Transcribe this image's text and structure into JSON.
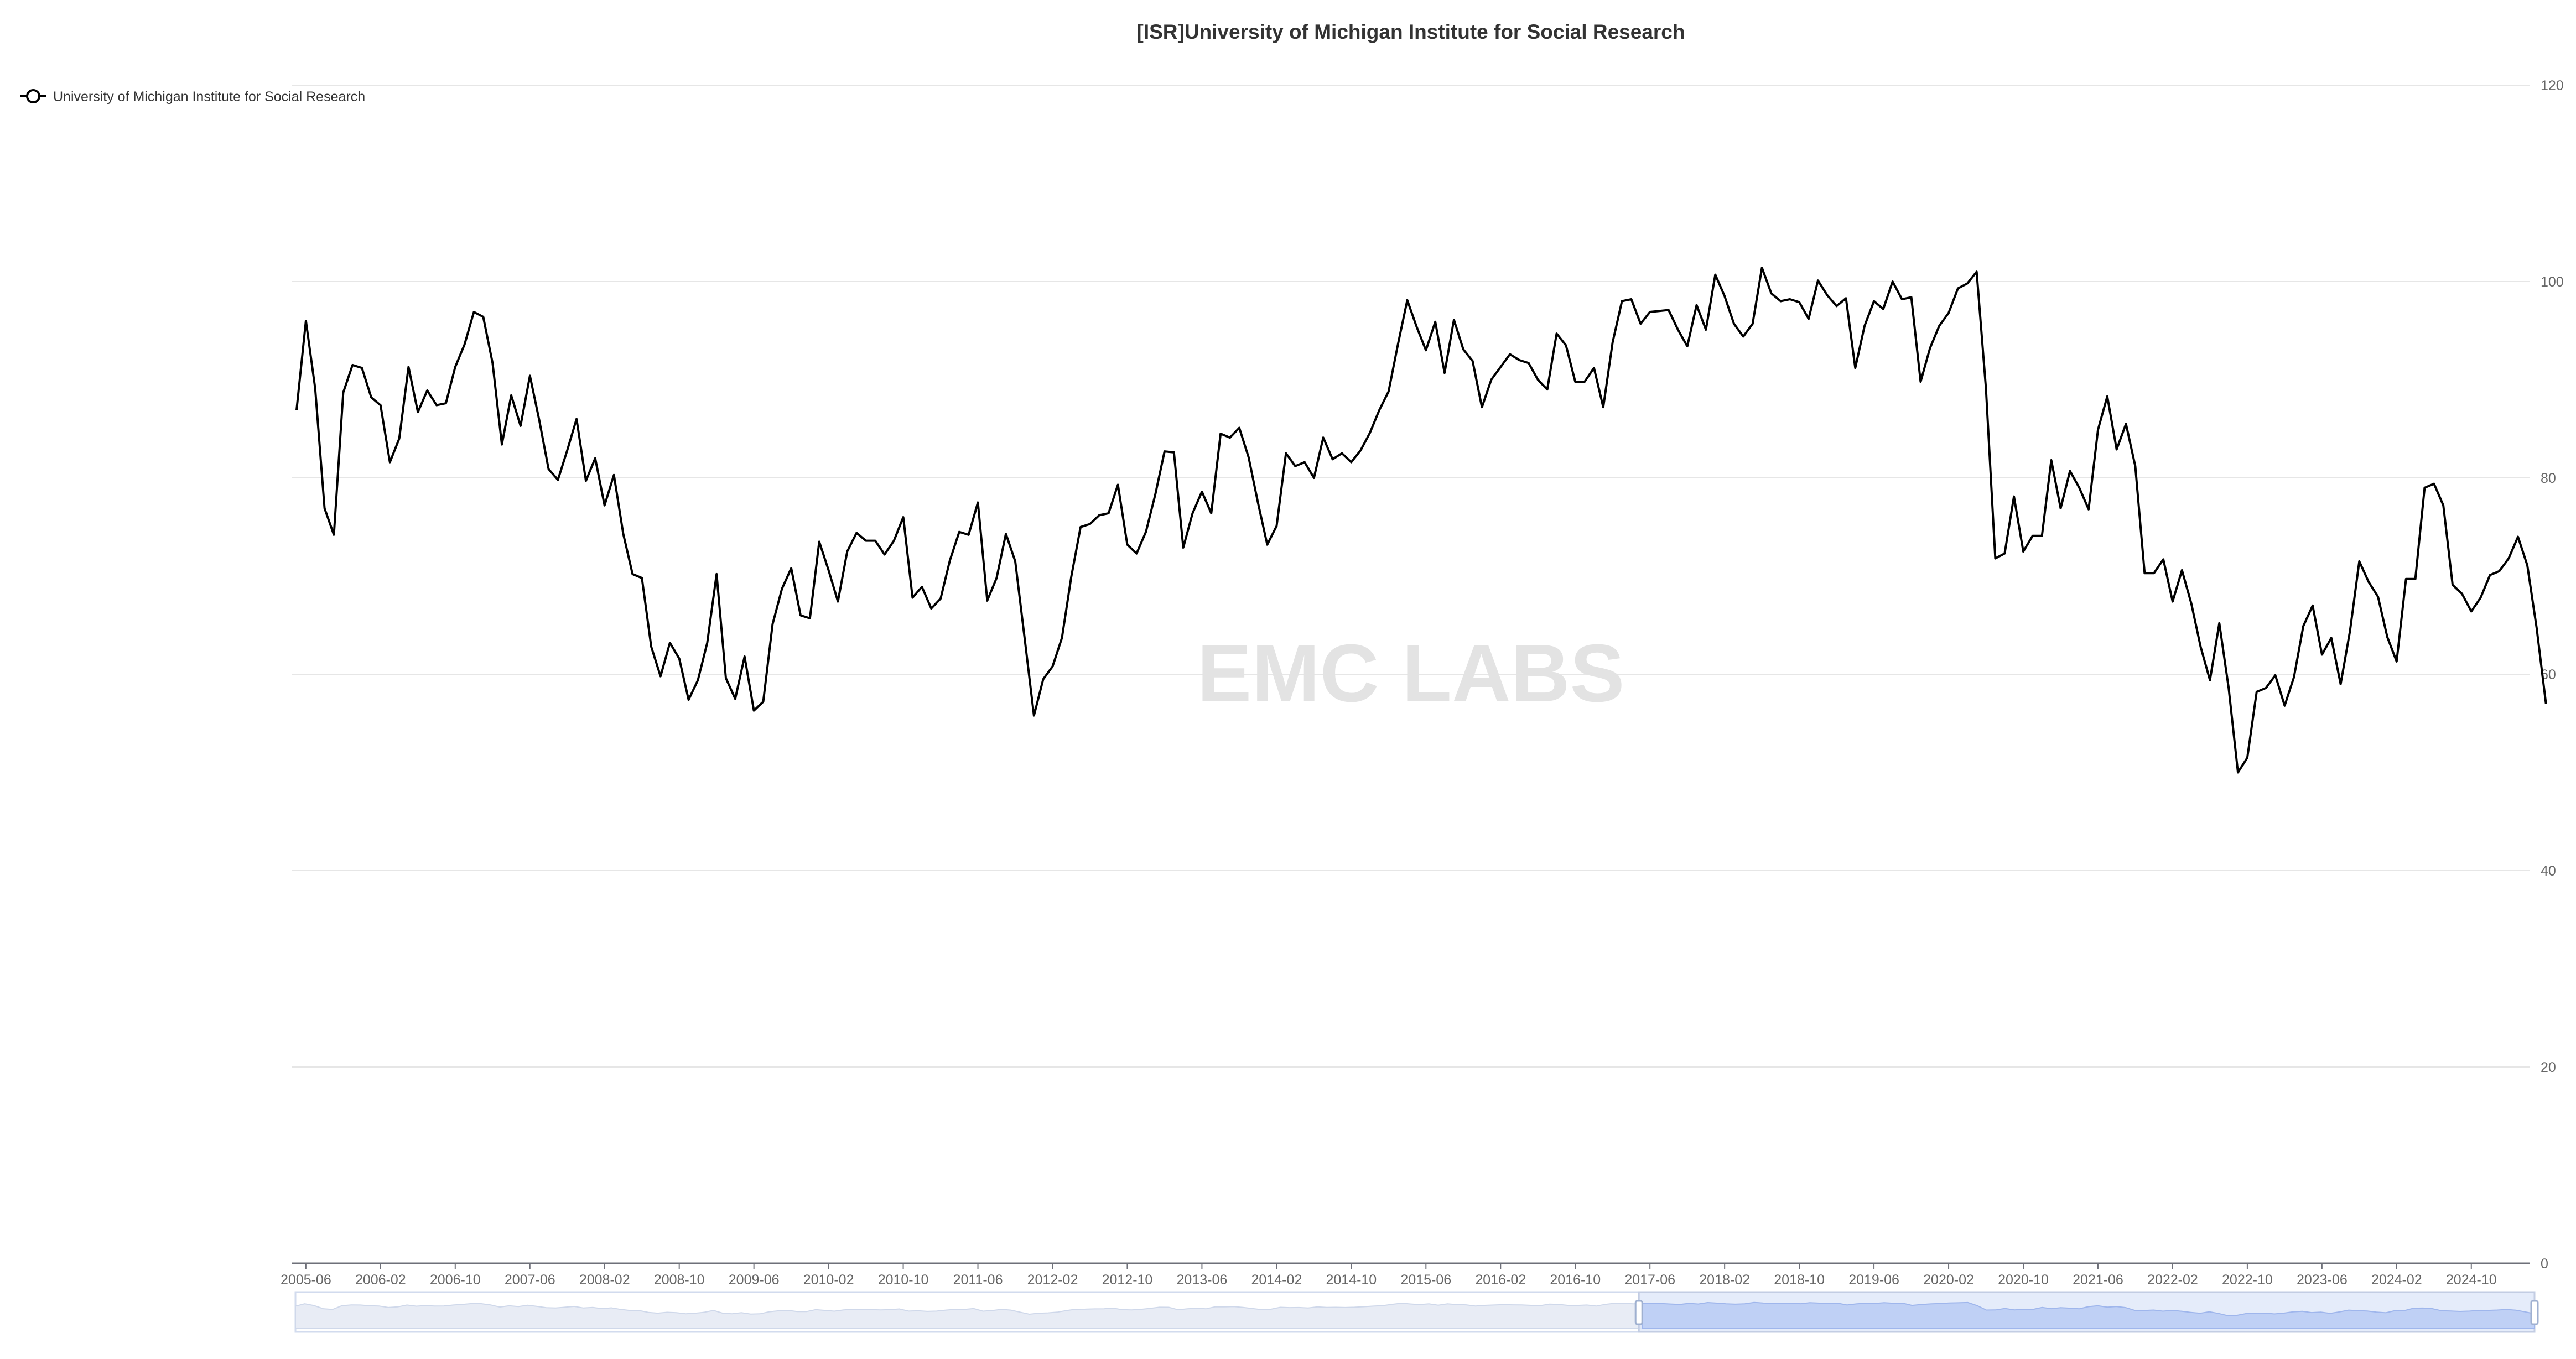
{
  "title": "[ISR]University of Michigan Institute for Social Research",
  "watermark": "EMC LABS",
  "legend": {
    "label": "University of Michigan Institute for Social Research",
    "placement": "top-left",
    "icon": "circle-line-icon"
  },
  "colors": {
    "line": "#000000",
    "grid": "#e6e6e6",
    "axis_text": "#666666",
    "watermark": "#e3e3e3",
    "zoom_fill": "#dce6f8",
    "zoom_border": "#c3cde3"
  },
  "chart_data": {
    "type": "line",
    "title": "[ISR]University of Michigan Institute for Social Research",
    "xlabel": "",
    "ylabel": "",
    "x_start": "2005-05",
    "x_end": "2025-04",
    "x_ticks": [
      "2005-06",
      "2006-02",
      "2006-10",
      "2007-06",
      "2008-02",
      "2008-10",
      "2009-06",
      "2010-02",
      "2010-10",
      "2011-06",
      "2012-02",
      "2012-10",
      "2013-06",
      "2014-02",
      "2014-10",
      "2015-06",
      "2016-02",
      "2016-10",
      "2017-06",
      "2018-02",
      "2018-10",
      "2019-06",
      "2020-02",
      "2020-10",
      "2021-06",
      "2022-02",
      "2022-10",
      "2023-06",
      "2024-02",
      "2024-10"
    ],
    "y_ticks": [
      0,
      20,
      40,
      60,
      80,
      100,
      120
    ],
    "ylim": [
      0,
      120
    ],
    "y_axis_position": "right",
    "grid": true,
    "dataZoom": {
      "start_fraction": 0.6,
      "end_fraction": 1.0
    },
    "series": [
      {
        "name": "University of Michigan Institute for Social Research",
        "values": [
          86.9,
          96.0,
          89.1,
          76.9,
          74.2,
          88.7,
          91.5,
          91.2,
          88.2,
          87.4,
          81.6,
          84.0,
          91.3,
          86.7,
          88.9,
          87.4,
          87.6,
          91.3,
          93.6,
          96.9,
          96.4,
          91.7,
          83.4,
          88.4,
          85.3,
          90.4,
          85.9,
          80.9,
          79.8,
          82.8,
          86.0,
          79.7,
          82.0,
          77.2,
          80.3,
          74.3,
          70.2,
          69.8,
          62.8,
          59.8,
          63.2,
          61.6,
          57.4,
          59.4,
          63.2,
          70.2,
          59.6,
          57.5,
          61.8,
          56.3,
          57.2,
          65.1,
          68.7,
          70.8,
          66.0,
          65.7,
          73.5,
          70.6,
          67.4,
          72.5,
          74.4,
          73.6,
          73.6,
          72.2,
          73.6,
          76.0,
          67.8,
          68.9,
          66.7,
          67.7,
          71.6,
          74.5,
          74.2,
          77.5,
          67.5,
          69.8,
          74.3,
          71.5,
          63.7,
          55.8,
          59.5,
          60.8,
          63.7,
          69.9,
          75.0,
          75.3,
          76.2,
          76.4,
          79.3,
          73.2,
          72.3,
          74.5,
          78.3,
          82.7,
          82.6,
          72.9,
          76.4,
          78.6,
          76.4,
          84.5,
          84.1,
          85.1,
          82.1,
          77.5,
          73.2,
          75.1,
          82.5,
          81.2,
          81.6,
          80.0,
          84.1,
          81.9,
          82.5,
          81.6,
          82.8,
          84.6,
          86.9,
          88.8,
          93.6,
          98.1,
          95.4,
          93.0,
          95.9,
          90.7,
          96.1,
          93.1,
          91.9,
          87.2,
          90.0,
          91.3,
          92.6,
          92.0,
          91.7,
          90.0,
          89.0,
          94.7,
          93.5,
          89.8,
          89.8,
          91.2,
          87.2,
          93.8,
          98.0,
          98.2,
          95.7,
          96.9,
          97.0,
          97.1,
          95.1,
          93.4,
          97.6,
          95.1,
          100.7,
          98.5,
          95.7,
          94.4,
          95.7,
          101.4,
          98.8,
          98.0,
          98.2,
          97.9,
          96.2,
          100.1,
          98.6,
          97.5,
          98.3,
          91.2,
          95.5,
          98.0,
          97.2,
          100.0,
          98.2,
          98.4,
          89.8,
          93.2,
          95.5,
          96.8,
          99.3,
          99.8,
          101.0,
          89.1,
          71.8,
          72.3,
          78.1,
          72.5,
          74.1,
          74.1,
          81.8,
          76.9,
          80.7,
          79.0,
          76.8,
          84.9,
          88.3,
          82.9,
          85.5,
          81.2,
          70.3,
          70.3,
          71.7,
          67.4,
          70.6,
          67.2,
          62.8,
          59.4,
          65.2,
          58.6,
          50.0,
          51.5,
          58.2,
          58.6,
          59.9,
          56.8,
          59.7,
          64.9,
          67.0,
          62.0,
          63.7,
          59.0,
          64.4,
          71.5,
          69.4,
          67.9,
          63.8,
          61.3,
          69.7,
          69.7,
          79.0,
          79.4,
          77.2,
          69.1,
          68.2,
          66.4,
          67.8,
          70.1,
          70.5,
          71.8,
          74.0,
          71.1,
          64.7,
          57.0
        ]
      }
    ]
  }
}
